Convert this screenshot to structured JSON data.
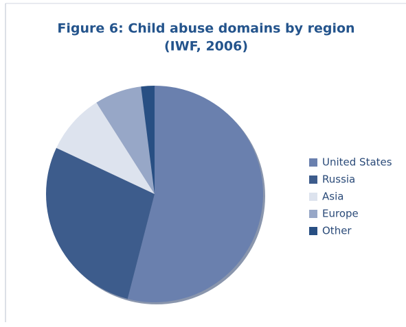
{
  "chart_data": {
    "type": "pie",
    "title": "Figure 6: Child abuse domains by region",
    "subtitle": "(IWF, 2006)",
    "categories": [
      "United States",
      "Russia",
      "Asia",
      "Europe",
      "Other"
    ],
    "values": [
      54,
      28,
      9,
      7,
      2
    ],
    "colors": [
      "#6a80ae",
      "#3d5c8c",
      "#dde3ee",
      "#97a7c7",
      "#284f83"
    ],
    "legend": "right"
  }
}
